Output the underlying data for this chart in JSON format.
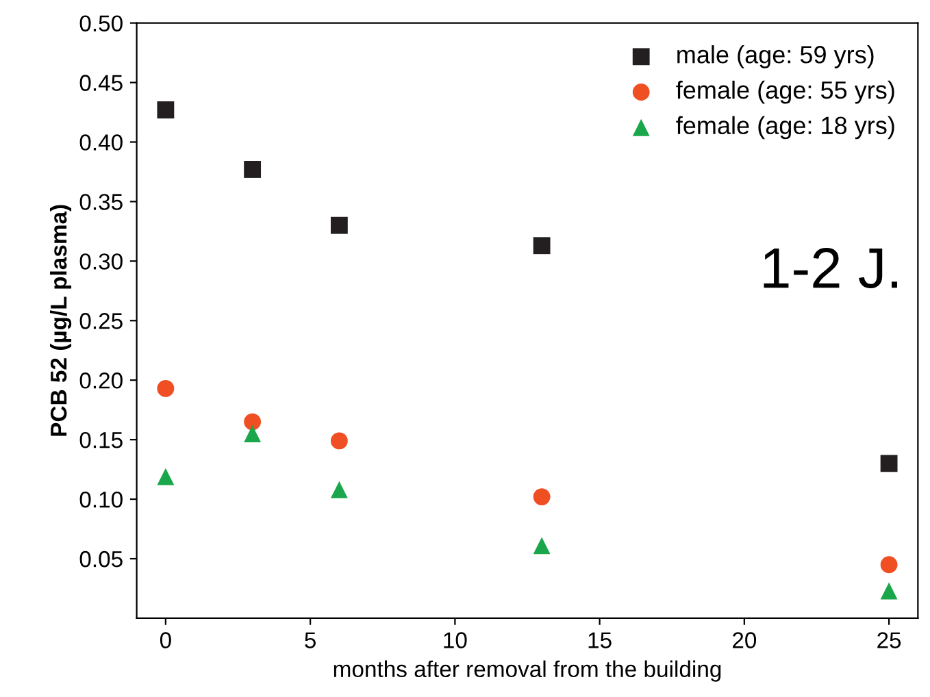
{
  "chart_data": {
    "type": "scatter",
    "xlabel": "months after removal from the building",
    "ylabel": "PCB 52 (µg/L plasma)",
    "x": [
      0,
      3,
      6,
      13,
      25
    ],
    "series": [
      {
        "name": "male (age: 59 yrs)",
        "color": "#231f20",
        "marker": "square",
        "values": [
          0.427,
          0.377,
          0.33,
          0.313,
          0.13
        ]
      },
      {
        "name": "female (age: 55 yrs)",
        "color": "#f04e23",
        "marker": "circle",
        "values": [
          0.193,
          0.165,
          0.149,
          0.102,
          0.045
        ]
      },
      {
        "name": "female (age: 18 yrs)",
        "color": "#1aa64a",
        "marker": "triangle",
        "values": [
          0.119,
          0.155,
          0.108,
          0.061,
          0.023
        ]
      }
    ],
    "xlim": [
      -1,
      26
    ],
    "xticks": [
      0,
      5,
      10,
      15,
      20,
      25
    ],
    "ylim": [
      0,
      0.5
    ],
    "yticks": [
      {
        "value": 0.05,
        "label": "0.05"
      },
      {
        "value": 0.1,
        "label": "0.10"
      },
      {
        "value": 0.15,
        "label": "0.15"
      },
      {
        "value": 0.2,
        "label": "0.20"
      },
      {
        "value": 0.25,
        "label": "0.25"
      },
      {
        "value": 0.3,
        "label": "0.30"
      },
      {
        "value": 0.35,
        "label": "0.35"
      },
      {
        "value": 0.4,
        "label": "0.40"
      },
      {
        "value": 0.45,
        "label": "0.45"
      },
      {
        "value": 0.5,
        "label": "0.50"
      }
    ],
    "annotations": [
      "1-2 J."
    ],
    "legend": "top right",
    "grid": false
  }
}
